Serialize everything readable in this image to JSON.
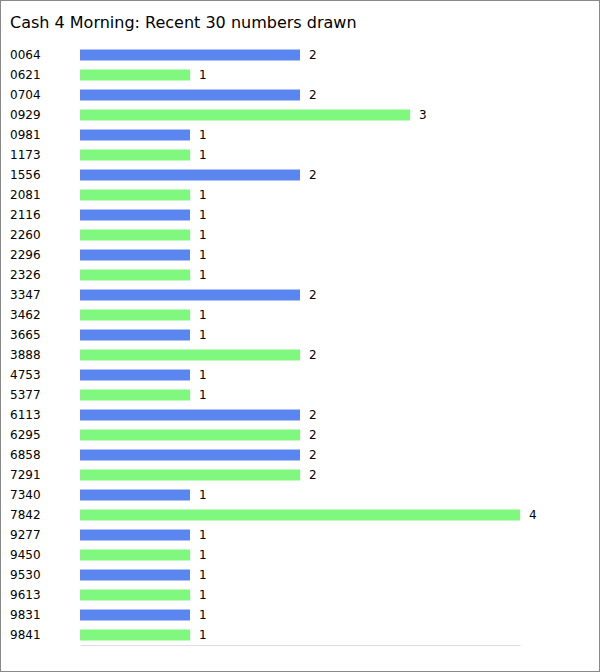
{
  "chart_data": {
    "type": "bar",
    "title": "Cash 4 Morning: Recent 30 numbers drawn",
    "orientation": "horizontal",
    "categories": [
      "0064",
      "0621",
      "0704",
      "0929",
      "0981",
      "1173",
      "1556",
      "2081",
      "2116",
      "2260",
      "2296",
      "2326",
      "3347",
      "3462",
      "3665",
      "3888",
      "4753",
      "5377",
      "6113",
      "6295",
      "6858",
      "7291",
      "7340",
      "7842",
      "9277",
      "9450",
      "9530",
      "9613",
      "9831",
      "9841"
    ],
    "values": [
      2,
      1,
      2,
      3,
      1,
      1,
      2,
      1,
      1,
      1,
      1,
      1,
      2,
      1,
      1,
      2,
      1,
      1,
      2,
      2,
      2,
      2,
      1,
      4,
      1,
      1,
      1,
      1,
      1,
      1
    ],
    "colors": [
      "#5b86f0",
      "#80f880",
      "#5b86f0",
      "#80f880",
      "#5b86f0",
      "#80f880",
      "#5b86f0",
      "#80f880",
      "#5b86f0",
      "#80f880",
      "#5b86f0",
      "#80f880",
      "#5b86f0",
      "#80f880",
      "#5b86f0",
      "#80f880",
      "#5b86f0",
      "#80f880",
      "#5b86f0",
      "#80f880",
      "#5b86f0",
      "#80f880",
      "#5b86f0",
      "#80f880",
      "#5b86f0",
      "#80f880",
      "#5b86f0",
      "#80f880",
      "#5b86f0",
      "#80f880"
    ],
    "xlim": [
      0,
      4
    ],
    "tick_labels": false,
    "data_labels": true,
    "grid": false
  }
}
